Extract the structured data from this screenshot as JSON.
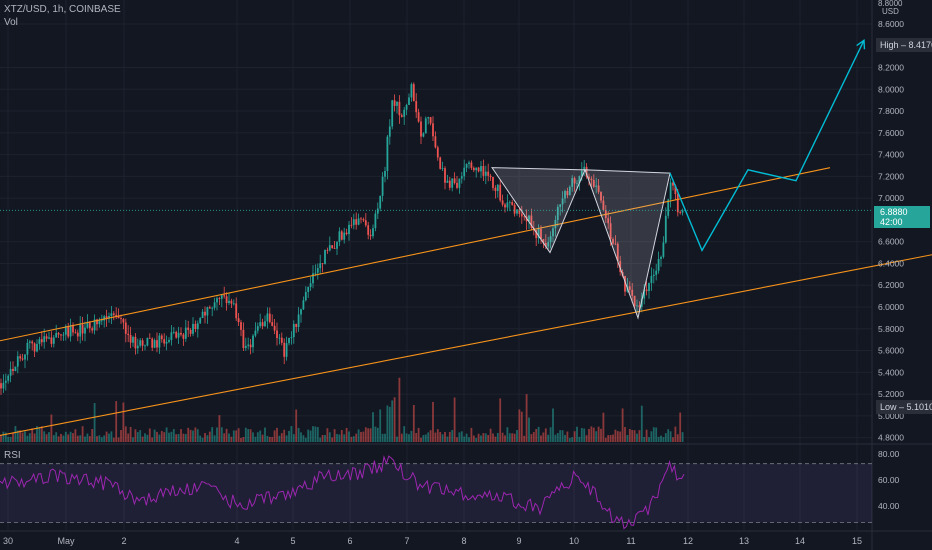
{
  "header": {
    "symbol_line": "XTZ/USD, 1h, COINBASE",
    "vol_label": "Vol"
  },
  "rsi": {
    "label": "RSI",
    "ticks": [
      "80.00",
      "60.00",
      "40.00"
    ]
  },
  "price_axis": {
    "currency": "USD",
    "top_partial": "8.8000",
    "ticks": [
      "8.6000",
      "8.2000",
      "8.0000",
      "7.8000",
      "7.6000",
      "7.4000",
      "7.2000",
      "7.0000",
      "6.6000",
      "6.4000",
      "6.2000",
      "6.0000",
      "5.8000",
      "5.6000",
      "5.4000",
      "5.2000",
      "5.0000",
      "4.8000"
    ]
  },
  "last_price": {
    "price": "6.8880",
    "countdown": "42:00",
    "color": "#26a69a"
  },
  "high_marker": {
    "label": "High",
    "value": "8.4176"
  },
  "low_marker": {
    "label": "Low",
    "value": "5.1010"
  },
  "time_axis": {
    "ticks": [
      "30",
      "May",
      "2",
      "4",
      "5",
      "6",
      "7",
      "8",
      "9",
      "10",
      "11",
      "12",
      "13",
      "14",
      "15"
    ]
  },
  "colors": {
    "background": "#131722",
    "up": "#26a69a",
    "down": "#ef5350",
    "channel": "#f7931a",
    "projection": "#00bcd4",
    "rsi_line": "#9c27b0",
    "pattern_fill": "#d1d4dc"
  },
  "chart_data": {
    "type": "candlestick",
    "interval": "1h",
    "price_range": [
      4.76,
      8.82
    ],
    "rsi_range": [
      25,
      82
    ],
    "rsi_levels": [
      70,
      30
    ],
    "keypoints": [
      {
        "t": 0,
        "p": 5.3
      },
      {
        "t": 10,
        "p": 5.42
      },
      {
        "t": 25,
        "p": 5.6
      },
      {
        "t": 45,
        "p": 5.7
      },
      {
        "t": 70,
        "p": 5.78
      },
      {
        "t": 90,
        "p": 5.8
      },
      {
        "t": 105,
        "p": 5.9
      },
      {
        "t": 120,
        "p": 5.9
      },
      {
        "t": 135,
        "p": 5.65
      },
      {
        "t": 160,
        "p": 5.68
      },
      {
        "t": 185,
        "p": 5.75
      },
      {
        "t": 205,
        "p": 5.95
      },
      {
        "t": 230,
        "p": 6.1
      },
      {
        "t": 245,
        "p": 5.6
      },
      {
        "t": 268,
        "p": 5.95
      },
      {
        "t": 285,
        "p": 5.58
      },
      {
        "t": 300,
        "p": 5.95
      },
      {
        "t": 318,
        "p": 6.4
      },
      {
        "t": 340,
        "p": 6.65
      },
      {
        "t": 360,
        "p": 6.85
      },
      {
        "t": 372,
        "p": 6.65
      },
      {
        "t": 385,
        "p": 7.3
      },
      {
        "t": 392,
        "p": 7.9
      },
      {
        "t": 405,
        "p": 7.75
      },
      {
        "t": 411,
        "p": 8.1
      },
      {
        "t": 420,
        "p": 7.6
      },
      {
        "t": 430,
        "p": 7.75
      },
      {
        "t": 440,
        "p": 7.25
      },
      {
        "t": 455,
        "p": 7.1
      },
      {
        "t": 470,
        "p": 7.3
      },
      {
        "t": 490,
        "p": 7.2
      },
      {
        "t": 505,
        "p": 6.95
      },
      {
        "t": 520,
        "p": 6.9
      },
      {
        "t": 535,
        "p": 6.7
      },
      {
        "t": 548,
        "p": 6.55
      },
      {
        "t": 560,
        "p": 6.95
      },
      {
        "t": 572,
        "p": 7.15
      },
      {
        "t": 585,
        "p": 7.25
      },
      {
        "t": 600,
        "p": 7.05
      },
      {
        "t": 610,
        "p": 6.7
      },
      {
        "t": 625,
        "p": 6.2
      },
      {
        "t": 638,
        "p": 5.95
      },
      {
        "t": 650,
        "p": 6.25
      },
      {
        "t": 662,
        "p": 6.5
      },
      {
        "t": 668,
        "p": 7.0
      },
      {
        "t": 672,
        "p": 7.2
      },
      {
        "t": 678,
        "p": 6.9
      },
      {
        "t": 684,
        "p": 6.89
      }
    ],
    "channel_lines": [
      {
        "name": "upper",
        "points": [
          [
            0,
            5.69
          ],
          [
            830,
            7.28
          ]
        ]
      },
      {
        "name": "lower",
        "points": [
          [
            0,
            4.82
          ],
          [
            932,
            6.48
          ]
        ]
      }
    ],
    "pattern": {
      "name": "double bottom",
      "left_shoulder": [
        [
          492,
          7.28
        ],
        [
          550,
          6.5
        ],
        [
          585,
          7.26
        ]
      ],
      "right_shoulder": [
        [
          585,
          7.26
        ],
        [
          638,
          5.9
        ],
        [
          670,
          7.23
        ]
      ]
    },
    "projection_path": [
      [
        670,
        7.23
      ],
      [
        684,
        6.92
      ],
      [
        702,
        6.52
      ],
      [
        748,
        7.26
      ],
      [
        796,
        7.16
      ],
      [
        864,
        8.45
      ]
    ],
    "rsi_keypoints": [
      {
        "t": 0,
        "v": 55
      },
      {
        "t": 50,
        "v": 62
      },
      {
        "t": 100,
        "v": 58
      },
      {
        "t": 140,
        "v": 45
      },
      {
        "t": 200,
        "v": 55
      },
      {
        "t": 240,
        "v": 42
      },
      {
        "t": 280,
        "v": 48
      },
      {
        "t": 320,
        "v": 60
      },
      {
        "t": 360,
        "v": 64
      },
      {
        "t": 390,
        "v": 72
      },
      {
        "t": 420,
        "v": 55
      },
      {
        "t": 460,
        "v": 50
      },
      {
        "t": 500,
        "v": 47
      },
      {
        "t": 540,
        "v": 40
      },
      {
        "t": 560,
        "v": 55
      },
      {
        "t": 580,
        "v": 62
      },
      {
        "t": 610,
        "v": 35
      },
      {
        "t": 630,
        "v": 28
      },
      {
        "t": 650,
        "v": 40
      },
      {
        "t": 670,
        "v": 68
      },
      {
        "t": 684,
        "v": 58
      }
    ]
  }
}
